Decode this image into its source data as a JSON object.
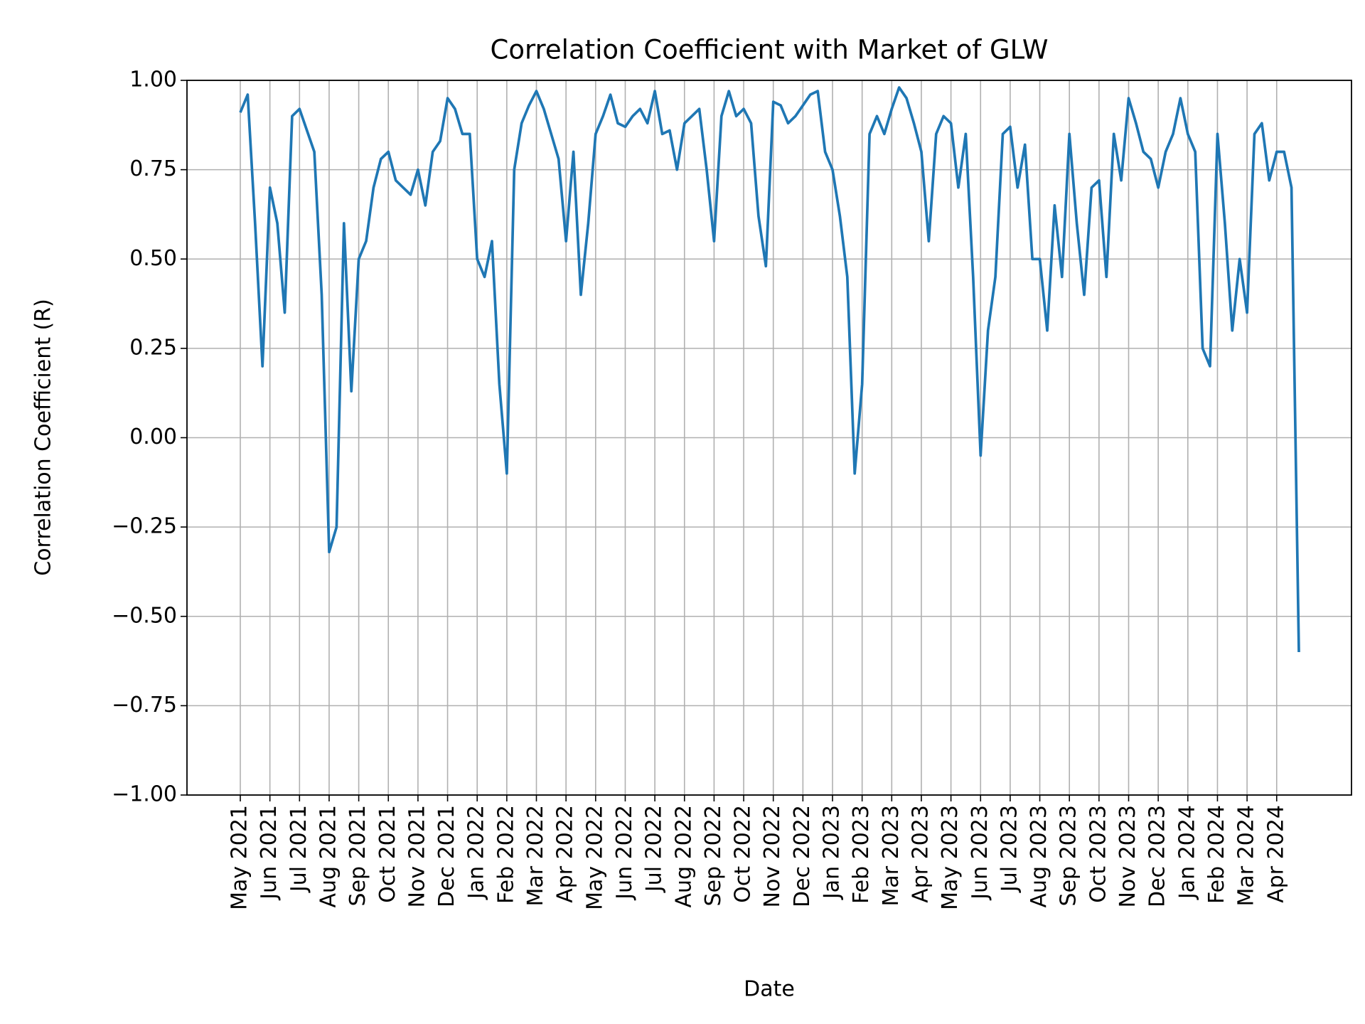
{
  "chart_data": {
    "type": "line",
    "title": "Correlation Coefficient with Market of GLW",
    "x_label": "Date",
    "y_label": "Correlation Coefficient (R)",
    "ylim": [
      -1,
      1
    ],
    "yticks": [
      {
        "value": -1,
        "label": "−1.00"
      },
      {
        "value": -0.75,
        "label": "−0.75"
      },
      {
        "value": -0.5,
        "label": "−0.50"
      },
      {
        "value": -0.25,
        "label": "−0.25"
      },
      {
        "value": 0,
        "label": "0.00"
      },
      {
        "value": 0.25,
        "label": "0.25"
      },
      {
        "value": 0.5,
        "label": "0.50"
      },
      {
        "value": 0.75,
        "label": "0.75"
      },
      {
        "value": 1,
        "label": "1.00"
      }
    ],
    "grid": true,
    "categories": [
      "May 2021",
      null,
      null,
      null,
      "Jun 2021",
      null,
      null,
      null,
      "Jul 2021",
      null,
      null,
      null,
      "Aug 2021",
      null,
      null,
      null,
      "Sep 2021",
      null,
      null,
      null,
      "Oct 2021",
      null,
      null,
      null,
      "Nov 2021",
      null,
      null,
      null,
      "Dec 2021",
      null,
      null,
      null,
      "Jan 2022",
      null,
      null,
      null,
      "Feb 2022",
      null,
      null,
      null,
      "Mar 2022",
      null,
      null,
      null,
      "Apr 2022",
      null,
      null,
      null,
      "May 2022",
      null,
      null,
      null,
      "Jun 2022",
      null,
      null,
      null,
      "Jul 2022",
      null,
      null,
      null,
      "Aug 2022",
      null,
      null,
      null,
      "Sep 2022",
      null,
      null,
      null,
      "Oct 2022",
      null,
      null,
      null,
      "Nov 2022",
      null,
      null,
      null,
      "Dec 2022",
      null,
      null,
      null,
      "Jan 2023",
      null,
      null,
      null,
      "Feb 2023",
      null,
      null,
      null,
      "Mar 2023",
      null,
      null,
      null,
      "Apr 2023",
      null,
      null,
      null,
      "May 2023",
      null,
      null,
      null,
      "Jun 2023",
      null,
      null,
      null,
      "Jul 2023",
      null,
      null,
      null,
      "Aug 2023",
      null,
      null,
      null,
      "Sep 2023",
      null,
      null,
      null,
      "Oct 2023",
      null,
      null,
      null,
      "Nov 2023",
      null,
      null,
      null,
      "Dec 2023",
      null,
      null,
      null,
      "Jan 2024",
      null,
      null,
      null,
      "Feb 2024",
      null,
      null,
      null,
      "Mar 2024",
      null,
      null,
      null,
      "Apr 2024",
      null,
      null,
      null
    ],
    "series": [
      {
        "name": "GLW",
        "color": "#1f77b4",
        "values": [
          0.91,
          0.96,
          0.6,
          0.2,
          0.7,
          0.6,
          0.35,
          0.9,
          0.92,
          0.86,
          0.8,
          0.4,
          -0.32,
          -0.25,
          0.6,
          0.13,
          0.5,
          0.55,
          0.7,
          0.78,
          0.8,
          0.72,
          0.7,
          0.68,
          0.75,
          0.65,
          0.8,
          0.83,
          0.95,
          0.92,
          0.85,
          0.85,
          0.5,
          0.45,
          0.55,
          0.15,
          -0.1,
          0.75,
          0.88,
          0.93,
          0.97,
          0.92,
          0.85,
          0.78,
          0.55,
          0.8,
          0.4,
          0.6,
          0.85,
          0.9,
          0.96,
          0.88,
          0.87,
          0.9,
          0.92,
          0.88,
          0.97,
          0.85,
          0.86,
          0.75,
          0.88,
          0.9,
          0.92,
          0.75,
          0.55,
          0.9,
          0.97,
          0.9,
          0.92,
          0.88,
          0.62,
          0.48,
          0.94,
          0.93,
          0.88,
          0.9,
          0.93,
          0.96,
          0.97,
          0.8,
          0.75,
          0.62,
          0.45,
          -0.1,
          0.15,
          0.85,
          0.9,
          0.85,
          0.92,
          0.98,
          0.95,
          0.88,
          0.8,
          0.55,
          0.85,
          0.9,
          0.88,
          0.7,
          0.85,
          0.45,
          -0.05,
          0.3,
          0.45,
          0.85,
          0.87,
          0.7,
          0.82,
          0.5,
          0.5,
          0.3,
          0.65,
          0.45,
          0.85,
          0.6,
          0.4,
          0.7,
          0.72,
          0.45,
          0.85,
          0.72,
          0.95,
          0.88,
          0.8,
          0.78,
          0.7,
          0.8,
          0.85,
          0.95,
          0.85,
          0.8,
          0.25,
          0.2,
          0.85,
          0.6,
          0.3,
          0.5,
          0.35,
          0.85,
          0.88,
          0.72,
          0.8,
          0.8,
          0.7,
          -0.6
        ]
      }
    ]
  }
}
